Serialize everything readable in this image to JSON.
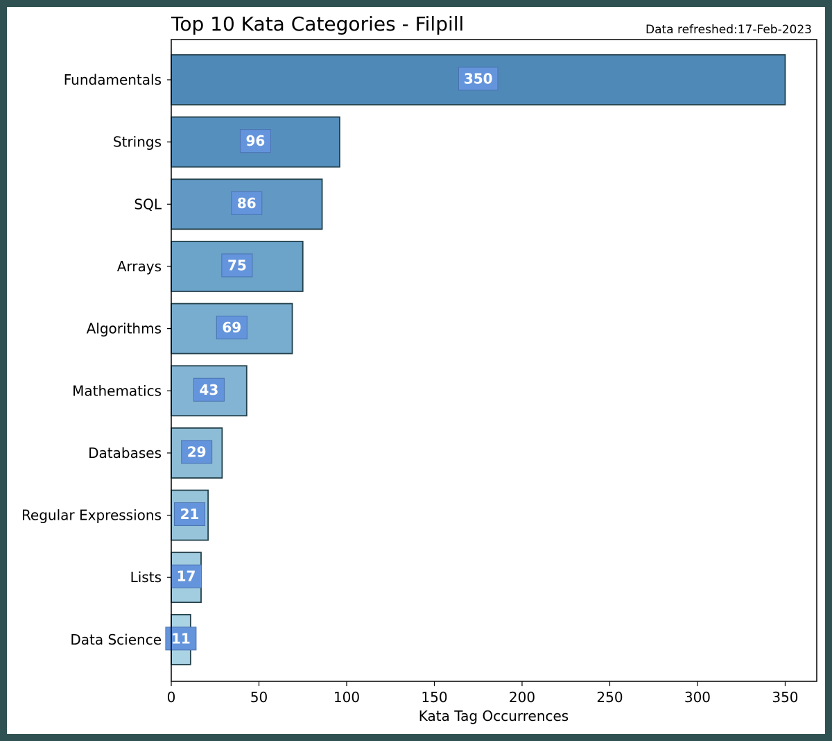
{
  "chart_data": {
    "type": "bar",
    "orientation": "horizontal",
    "title": "Top 10 Kata Categories - Filpill",
    "annotation": "Data refreshed:17-Feb-2023",
    "xlabel": "Kata Tag Occurrences",
    "ylabel": "",
    "xlim": [
      0,
      368
    ],
    "x_ticks": [
      0,
      50,
      100,
      150,
      200,
      250,
      300,
      350
    ],
    "categories": [
      "Fundamentals",
      "Strings",
      "SQL",
      "Arrays",
      "Algorithms",
      "Mathematics",
      "Databases",
      "Regular Expressions",
      "Lists",
      "Data Science"
    ],
    "values": [
      350,
      96,
      86,
      75,
      69,
      43,
      29,
      21,
      17,
      11
    ],
    "bar_colors": [
      "#4f89b8",
      "#558fbe",
      "#6199c4",
      "#6ba3c9",
      "#78adcf",
      "#83b4d3",
      "#8dbcd6",
      "#98c4da",
      "#a2cde0",
      "#aad4e4"
    ],
    "bar_edge_color": "#23404a",
    "label_box_color": "#6495dc",
    "grid": false,
    "legend": "none"
  }
}
